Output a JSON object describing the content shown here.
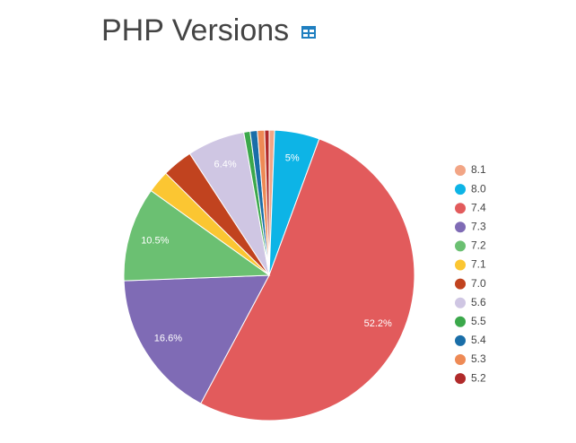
{
  "chart_data": {
    "type": "pie",
    "title": "PHP Versions",
    "categories": [
      "8.1",
      "8.0",
      "7.4",
      "7.3",
      "7.2",
      "7.1",
      "7.0",
      "5.6",
      "5.5",
      "5.4",
      "5.3",
      "5.2"
    ],
    "values": [
      0.6,
      5,
      52.2,
      16.6,
      10.5,
      2.5,
      3.4,
      6.4,
      0.7,
      0.8,
      0.8,
      0.5
    ],
    "value_labels": [
      null,
      "5%",
      "52.2%",
      "16.6%",
      "10.5%",
      null,
      null,
      "6.4%",
      null,
      null,
      null,
      null
    ],
    "colors": [
      "#f2a585",
      "#0db4e6",
      "#e25b5c",
      "#7f6bb5",
      "#6bc072",
      "#fbc632",
      "#c1431f",
      "#cfc6e3",
      "#3ba84b",
      "#1a6ea8",
      "#ee8a55",
      "#b02a2a"
    ],
    "legend": "right"
  }
}
